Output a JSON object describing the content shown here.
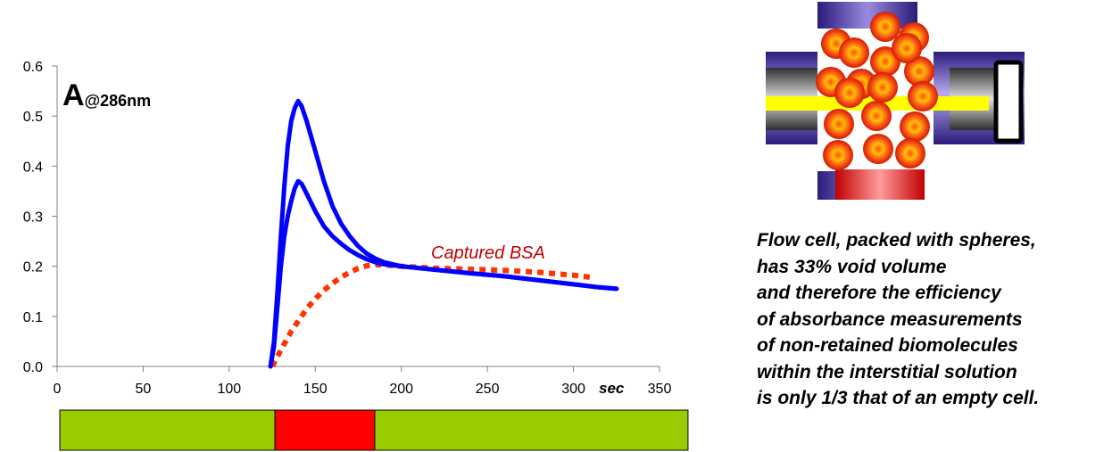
{
  "chart_data": {
    "type": "line",
    "y_label_main": "A",
    "y_label_sub": "@286nm",
    "x_unit_label": "sec",
    "xlim": [
      0,
      350
    ],
    "ylim": [
      0,
      0.6
    ],
    "x_ticks": [
      "0",
      "50",
      "100",
      "150",
      "200",
      "250",
      "300",
      "350"
    ],
    "y_ticks": [
      "0.0",
      "0.1",
      "0.2",
      "0.3",
      "0.4",
      "0.5",
      "0.6"
    ],
    "grid": false,
    "annotation": "Captured BSA",
    "series": [
      {
        "color": "#0000ff",
        "style": "solid",
        "points": [
          [
            124,
            0.0
          ],
          [
            126,
            0.05
          ],
          [
            128,
            0.15
          ],
          [
            130,
            0.26
          ],
          [
            132,
            0.36
          ],
          [
            134,
            0.44
          ],
          [
            136,
            0.49
          ],
          [
            138,
            0.515
          ],
          [
            140,
            0.53
          ],
          [
            142,
            0.52
          ],
          [
            145,
            0.49
          ],
          [
            150,
            0.43
          ],
          [
            155,
            0.37
          ],
          [
            160,
            0.32
          ],
          [
            165,
            0.285
          ],
          [
            170,
            0.26
          ],
          [
            175,
            0.24
          ],
          [
            180,
            0.225
          ],
          [
            185,
            0.215
          ],
          [
            190,
            0.208
          ],
          [
            200,
            0.2
          ],
          [
            220,
            0.193
          ],
          [
            240,
            0.186
          ],
          [
            260,
            0.18
          ],
          [
            280,
            0.172
          ],
          [
            300,
            0.164
          ],
          [
            315,
            0.158
          ],
          [
            325,
            0.155
          ]
        ]
      },
      {
        "color": "#0000ff",
        "style": "solid",
        "points": [
          [
            124,
            0.0
          ],
          [
            126,
            0.04
          ],
          [
            128,
            0.12
          ],
          [
            130,
            0.2
          ],
          [
            132,
            0.26
          ],
          [
            134,
            0.3
          ],
          [
            136,
            0.33
          ],
          [
            138,
            0.355
          ],
          [
            140,
            0.37
          ],
          [
            142,
            0.365
          ],
          [
            145,
            0.345
          ],
          [
            150,
            0.31
          ],
          [
            155,
            0.28
          ],
          [
            160,
            0.26
          ],
          [
            165,
            0.245
          ],
          [
            170,
            0.232
          ],
          [
            175,
            0.222
          ],
          [
            180,
            0.214
          ],
          [
            185,
            0.208
          ],
          [
            190,
            0.204
          ],
          [
            200,
            0.2
          ],
          [
            220,
            0.193
          ],
          [
            240,
            0.186
          ],
          [
            260,
            0.18
          ],
          [
            280,
            0.172
          ],
          [
            300,
            0.164
          ],
          [
            315,
            0.158
          ],
          [
            325,
            0.155
          ]
        ]
      },
      {
        "color": "#ff3300",
        "style": "dotted",
        "points": [
          [
            125,
            0.0
          ],
          [
            128,
            0.02
          ],
          [
            132,
            0.045
          ],
          [
            136,
            0.07
          ],
          [
            140,
            0.09
          ],
          [
            145,
            0.115
          ],
          [
            150,
            0.135
          ],
          [
            155,
            0.152
          ],
          [
            160,
            0.166
          ],
          [
            165,
            0.178
          ],
          [
            170,
            0.188
          ],
          [
            175,
            0.196
          ],
          [
            180,
            0.201
          ],
          [
            185,
            0.203
          ],
          [
            190,
            0.203
          ],
          [
            200,
            0.2
          ],
          [
            220,
            0.196
          ],
          [
            240,
            0.194
          ],
          [
            260,
            0.192
          ],
          [
            280,
            0.188
          ],
          [
            300,
            0.182
          ],
          [
            310,
            0.178
          ]
        ]
      }
    ],
    "phase_bar": [
      {
        "start": 0,
        "end": 125,
        "color": "#99cc00"
      },
      {
        "start": 125,
        "end": 183,
        "color": "#ff0000"
      },
      {
        "start": 183,
        "end": 365,
        "color": "#99cc00"
      }
    ]
  },
  "caption": {
    "lines": [
      "Flow cell, packed with spheres,",
      "has 33% void volume",
      "and therefore the efficiency",
      "of absorbance measurements",
      "of non-retained biomolecules",
      "within the interstitial solution",
      "is only 1/3 that of an empty cell."
    ]
  },
  "colors": {
    "line": "#0000ff",
    "captured": "#ff3300",
    "annotation": "#c00000",
    "phase_load": "#99cc00",
    "phase_sample": "#ff0000"
  }
}
